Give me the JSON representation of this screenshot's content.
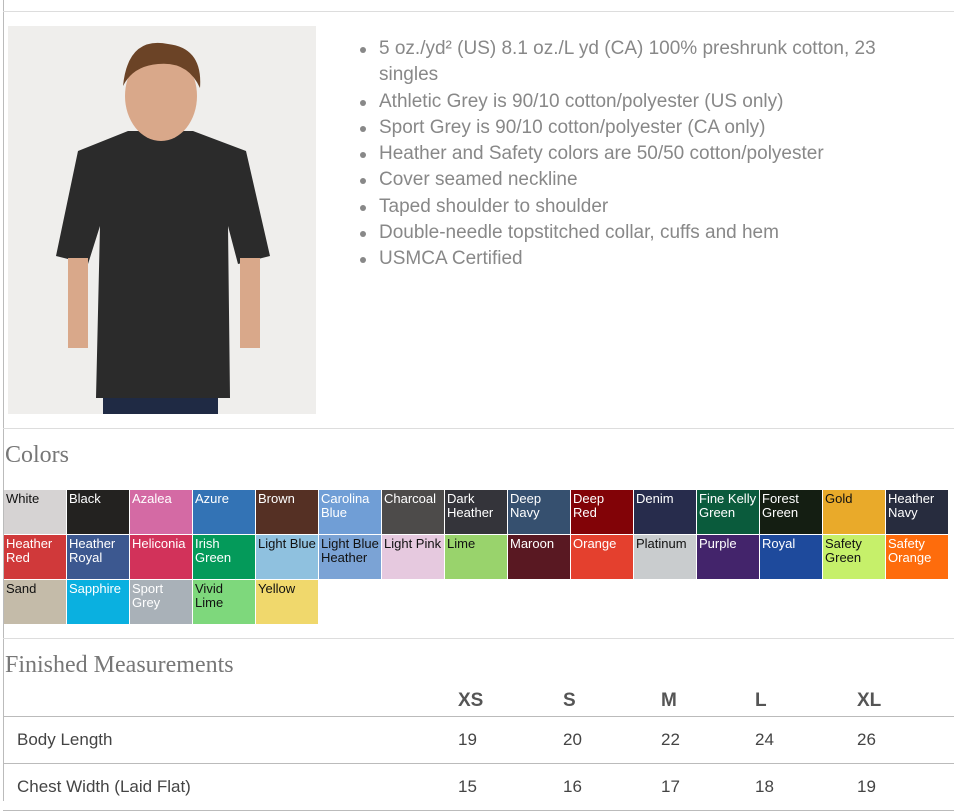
{
  "features": [
    "5 oz./yd² (US) 8.1 oz./L yd (CA) 100% preshrunk cotton, 23 singles",
    "Athletic Grey is 90/10 cotton/polyester (US only)",
    "Sport Grey is 90/10 cotton/polyester (CA only)",
    "Heather and Safety colors are 50/50 cotton/polyester",
    "Cover seamed neckline",
    "Taped shoulder to shoulder",
    "Double-needle topstitched collar, cuffs and hem",
    "USMCA Certified"
  ],
  "colors_heading": "Colors",
  "colors": [
    {
      "name": "White",
      "hex": "#d6d3d3",
      "dark": true
    },
    {
      "name": "Black",
      "hex": "#232220"
    },
    {
      "name": "Azalea",
      "hex": "#d46aa4"
    },
    {
      "name": "Azure",
      "hex": "#3373b5"
    },
    {
      "name": "Brown",
      "hex": "#553024"
    },
    {
      "name": "Carolina Blue",
      "hex": "#709ed6"
    },
    {
      "name": "Charcoal",
      "hex": "#4d4b4a"
    },
    {
      "name": "Dark Heather",
      "hex": "#34343a"
    },
    {
      "name": "Deep Navy",
      "hex": "#36506f"
    },
    {
      "name": "Deep Red",
      "hex": "#820307"
    },
    {
      "name": "Denim",
      "hex": "#272c4c"
    },
    {
      "name": "Fine Kelly Green",
      "hex": "#0a5b3c"
    },
    {
      "name": "Forest Green",
      "hex": "#141e12"
    },
    {
      "name": "Gold",
      "hex": "#e9aa2a",
      "dark": true
    },
    {
      "name": "Heather Navy",
      "hex": "#272c3e"
    },
    {
      "name": "Heather Red",
      "hex": "#d0393a"
    },
    {
      "name": "Heather Royal",
      "hex": "#3c5890"
    },
    {
      "name": "Heliconia",
      "hex": "#d2325a"
    },
    {
      "name": "Irish Green",
      "hex": "#049a5a"
    },
    {
      "name": "Light Blue",
      "hex": "#8fc1df",
      "dark": true
    },
    {
      "name": "Light Blue Heather",
      "hex": "#7ba3d5",
      "dark": true
    },
    {
      "name": "Light Pink",
      "hex": "#e6c9df",
      "dark": true
    },
    {
      "name": "Lime",
      "hex": "#99d36c",
      "dark": true
    },
    {
      "name": "Maroon",
      "hex": "#591822"
    },
    {
      "name": "Orange",
      "hex": "#e4402e"
    },
    {
      "name": "Platinum",
      "hex": "#c9ccce",
      "dark": true
    },
    {
      "name": "Purple",
      "hex": "#43246b"
    },
    {
      "name": "Royal",
      "hex": "#1e4a9c"
    },
    {
      "name": "Safety Green",
      "hex": "#c6f06a",
      "dark": true
    },
    {
      "name": "Safety Orange",
      "hex": "#fe6c0c"
    },
    {
      "name": "Sand",
      "hex": "#c4bba9",
      "dark": true
    },
    {
      "name": "Sapphire",
      "hex": "#0ab0e0"
    },
    {
      "name": "Sport Grey",
      "hex": "#a9b1b8"
    },
    {
      "name": "Vivid Lime",
      "hex": "#7ed87c",
      "dark": true
    },
    {
      "name": "Yellow",
      "hex": "#f0d86c",
      "dark": true
    }
  ],
  "measurements": {
    "heading": "Finished Measurements",
    "sizes": [
      "XS",
      "S",
      "M",
      "L",
      "XL"
    ],
    "rows": [
      {
        "label": "Body Length",
        "values": [
          "19",
          "20",
          "22",
          "24",
          "26"
        ]
      },
      {
        "label": "Chest Width (Laid Flat)",
        "values": [
          "15",
          "16",
          "17",
          "18",
          "19"
        ]
      }
    ]
  }
}
